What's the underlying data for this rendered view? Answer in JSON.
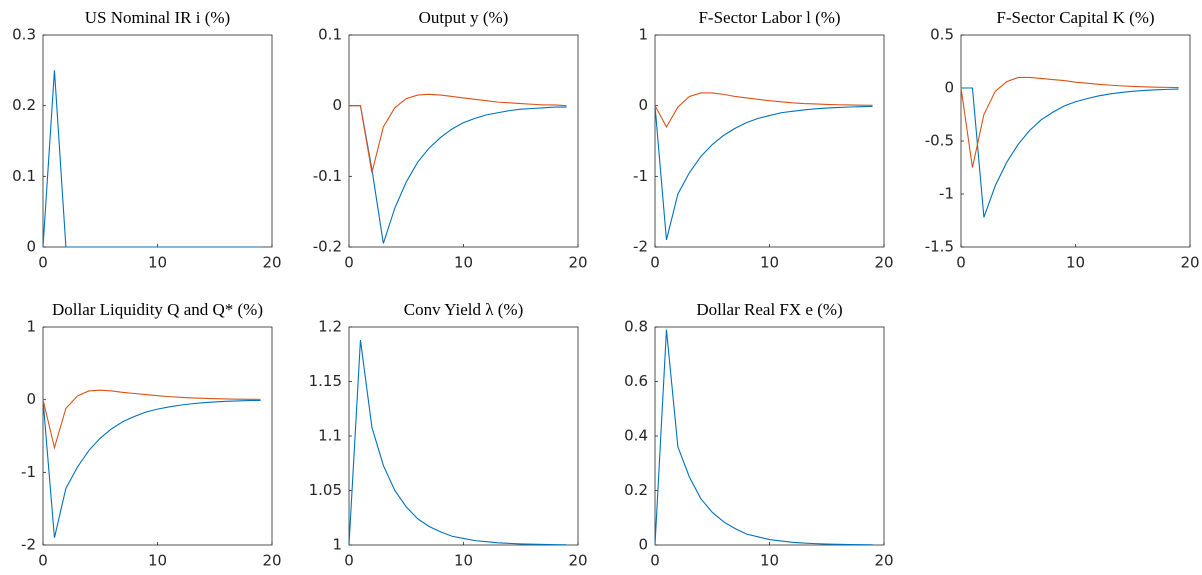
{
  "chart_data": [
    {
      "type": "line",
      "title": "US Nominal IR i (%)",
      "x": [
        0,
        1,
        2,
        3,
        4,
        5,
        6,
        7,
        8,
        9,
        10,
        11,
        12,
        13,
        14,
        15,
        16,
        17,
        18,
        19
      ],
      "xlim": [
        0,
        20
      ],
      "xticks": [
        0,
        10,
        20
      ],
      "ylim": [
        0,
        0.3
      ],
      "yticks": [
        0,
        0.1,
        0.2,
        0.3
      ],
      "series": [
        {
          "color": "#0072BD",
          "values": [
            0,
            0.25,
            0,
            0,
            0,
            0,
            0,
            0,
            0,
            0,
            0,
            0,
            0,
            0,
            0,
            0,
            0,
            0,
            0,
            0
          ]
        }
      ]
    },
    {
      "type": "line",
      "title": "Output y (%)",
      "x": [
        0,
        1,
        2,
        3,
        4,
        5,
        6,
        7,
        8,
        9,
        10,
        11,
        12,
        13,
        14,
        15,
        16,
        17,
        18,
        19
      ],
      "xlim": [
        0,
        20
      ],
      "xticks": [
        0,
        10,
        20
      ],
      "ylim": [
        -0.2,
        0.1
      ],
      "yticks": [
        -0.2,
        -0.1,
        0,
        0.1
      ],
      "series": [
        {
          "color": "#0072BD",
          "values": [
            0,
            0,
            -0.09,
            -0.195,
            -0.145,
            -0.108,
            -0.08,
            -0.06,
            -0.045,
            -0.033,
            -0.024,
            -0.018,
            -0.013,
            -0.01,
            -0.007,
            -0.005,
            -0.004,
            -0.003,
            -0.002,
            -0.002
          ]
        },
        {
          "color": "#D95319",
          "values": [
            0,
            0,
            -0.095,
            -0.03,
            -0.003,
            0.01,
            0.015,
            0.016,
            0.015,
            0.013,
            0.011,
            0.009,
            0.007,
            0.005,
            0.004,
            0.003,
            0.002,
            0.001,
            0.001,
            0
          ]
        }
      ]
    },
    {
      "type": "line",
      "title": "F-Sector Labor l (%)",
      "x": [
        0,
        1,
        2,
        3,
        4,
        5,
        6,
        7,
        8,
        9,
        10,
        11,
        12,
        13,
        14,
        15,
        16,
        17,
        18,
        19
      ],
      "xlim": [
        0,
        20
      ],
      "xticks": [
        0,
        10,
        20
      ],
      "ylim": [
        -2,
        1
      ],
      "yticks": [
        -2,
        -1,
        0,
        1
      ],
      "series": [
        {
          "color": "#0072BD",
          "values": [
            0,
            -1.9,
            -1.25,
            -0.95,
            -0.72,
            -0.55,
            -0.42,
            -0.32,
            -0.24,
            -0.18,
            -0.14,
            -0.1,
            -0.08,
            -0.06,
            -0.045,
            -0.034,
            -0.025,
            -0.019,
            -0.014,
            -0.01
          ]
        },
        {
          "color": "#D95319",
          "values": [
            0,
            -0.3,
            -0.02,
            0.13,
            0.18,
            0.18,
            0.16,
            0.13,
            0.11,
            0.09,
            0.07,
            0.055,
            0.04,
            0.03,
            0.025,
            0.018,
            0.013,
            0.01,
            0.007,
            0.005
          ]
        }
      ]
    },
    {
      "type": "line",
      "title": "F-Sector Capital K (%)",
      "x": [
        0,
        1,
        2,
        3,
        4,
        5,
        6,
        7,
        8,
        9,
        10,
        11,
        12,
        13,
        14,
        15,
        16,
        17,
        18,
        19
      ],
      "xlim": [
        0,
        20
      ],
      "xticks": [
        0,
        10,
        20
      ],
      "ylim": [
        -1.5,
        0.5
      ],
      "yticks": [
        -1.5,
        -1,
        -0.5,
        0,
        0.5
      ],
      "series": [
        {
          "color": "#0072BD",
          "values": [
            0,
            0,
            -1.22,
            -0.92,
            -0.7,
            -0.53,
            -0.4,
            -0.3,
            -0.23,
            -0.17,
            -0.13,
            -0.1,
            -0.075,
            -0.056,
            -0.042,
            -0.031,
            -0.023,
            -0.017,
            -0.013,
            -0.01
          ]
        },
        {
          "color": "#D95319",
          "values": [
            0,
            -0.75,
            -0.25,
            -0.03,
            0.06,
            0.1,
            0.1,
            0.09,
            0.08,
            0.07,
            0.055,
            0.045,
            0.035,
            0.027,
            0.02,
            0.015,
            0.011,
            0.008,
            0.006,
            0.004
          ]
        }
      ]
    },
    {
      "type": "line",
      "title": "Dollar Liquidity Q and Q* (%)",
      "x": [
        0,
        1,
        2,
        3,
        4,
        5,
        6,
        7,
        8,
        9,
        10,
        11,
        12,
        13,
        14,
        15,
        16,
        17,
        18,
        19
      ],
      "xlim": [
        0,
        20
      ],
      "xticks": [
        0,
        10,
        20
      ],
      "ylim": [
        -2,
        1
      ],
      "yticks": [
        -2,
        -1,
        0,
        1
      ],
      "series": [
        {
          "color": "#0072BD",
          "values": [
            0,
            -1.9,
            -1.22,
            -0.93,
            -0.7,
            -0.53,
            -0.4,
            -0.3,
            -0.23,
            -0.17,
            -0.13,
            -0.1,
            -0.075,
            -0.056,
            -0.042,
            -0.031,
            -0.023,
            -0.017,
            -0.013,
            -0.01
          ]
        },
        {
          "color": "#D95319",
          "values": [
            0,
            -0.66,
            -0.12,
            0.05,
            0.12,
            0.13,
            0.12,
            0.1,
            0.085,
            0.07,
            0.055,
            0.042,
            0.032,
            0.024,
            0.018,
            0.013,
            0.01,
            0.007,
            0.005,
            0.004
          ]
        }
      ]
    },
    {
      "type": "line",
      "title": "Conv Yield λ (%)",
      "x": [
        0,
        1,
        2,
        3,
        4,
        5,
        6,
        7,
        8,
        9,
        10,
        11,
        12,
        13,
        14,
        15,
        16,
        17,
        18,
        19
      ],
      "xlim": [
        0,
        20
      ],
      "xticks": [
        0,
        10,
        20
      ],
      "ylim": [
        1,
        1.2
      ],
      "yticks": [
        1,
        1.05,
        1.1,
        1.15,
        1.2
      ],
      "series": [
        {
          "color": "#0072BD",
          "values": [
            1,
            1.188,
            1.108,
            1.073,
            1.05,
            1.035,
            1.024,
            1.017,
            1.012,
            1.008,
            1.006,
            1.004,
            1.003,
            1.002,
            1.0015,
            1.001,
            1.0007,
            1.0005,
            1.0003,
            1.0002
          ]
        }
      ]
    },
    {
      "type": "line",
      "title": "Dollar Real FX e (%)",
      "x": [
        0,
        1,
        2,
        3,
        4,
        5,
        6,
        7,
        8,
        9,
        10,
        11,
        12,
        13,
        14,
        15,
        16,
        17,
        18,
        19
      ],
      "xlim": [
        0,
        20
      ],
      "xticks": [
        0,
        10,
        20
      ],
      "ylim": [
        0,
        0.8
      ],
      "yticks": [
        0,
        0.2,
        0.4,
        0.6,
        0.8
      ],
      "series": [
        {
          "color": "#0072BD",
          "values": [
            0,
            0.79,
            0.36,
            0.25,
            0.17,
            0.12,
            0.085,
            0.06,
            0.04,
            0.03,
            0.02,
            0.015,
            0.01,
            0.007,
            0.005,
            0.0035,
            0.0025,
            0.0017,
            0.0012,
            0.0008
          ]
        }
      ]
    }
  ]
}
